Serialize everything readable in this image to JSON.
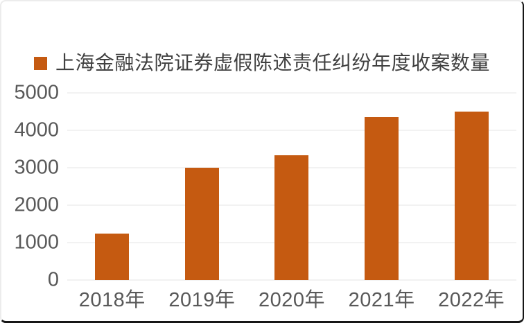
{
  "legend": {
    "label": "上海金融法院证券虚假陈述责任纠纷年度收案数量",
    "marker_color": "#C55A11"
  },
  "chart_data": {
    "type": "bar",
    "title": "",
    "xlabel": "",
    "ylabel": "",
    "categories": [
      "2018年",
      "2019年",
      "2020年",
      "2021年",
      "2022年"
    ],
    "series": [
      {
        "name": "上海金融法院证券虚假陈述责任纠纷年度收案数量",
        "values": [
          1250,
          3000,
          3330,
          4350,
          4500
        ]
      }
    ],
    "ylim": [
      0,
      5000
    ],
    "yticks": [
      0,
      1000,
      2000,
      3000,
      4000,
      5000
    ],
    "grid": true,
    "legend_position": "top-center",
    "colors": {
      "bar": "#C55A11",
      "gridline": "#F2F2F2",
      "axis_label": "#595959",
      "legend_text": "#404040",
      "background": "#FFFFFF"
    }
  }
}
